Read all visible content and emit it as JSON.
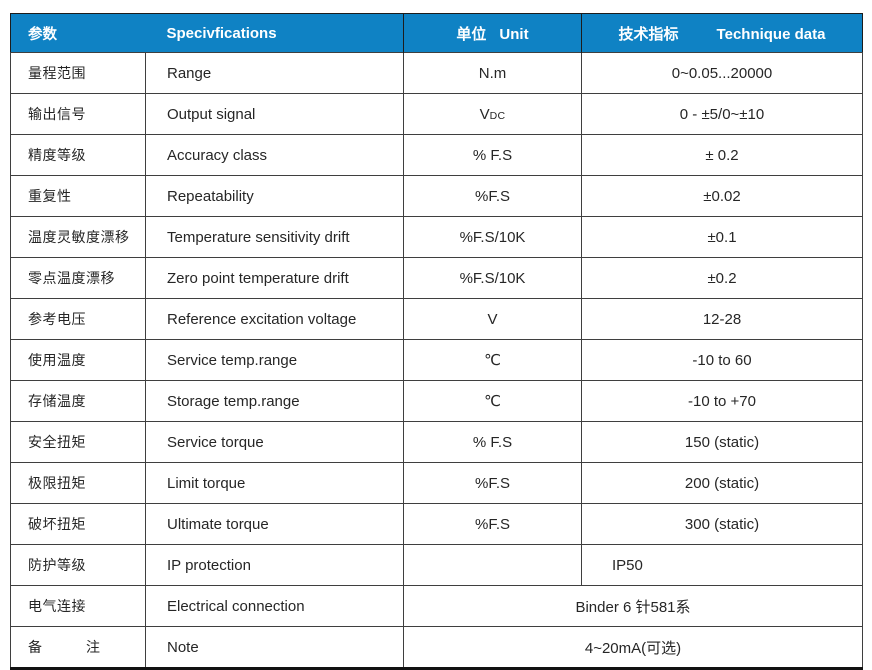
{
  "colors": {
    "accent": "#0f82c4",
    "text": "#262626",
    "header_text": "#ffffff"
  },
  "header": {
    "col1_zh": "参数",
    "col2_en": "Specivfications",
    "col3_zh": "单位",
    "col3_en": "Unit",
    "col4_zh": "技术指标",
    "col4_en": "Technique data"
  },
  "table": {
    "rows": [
      {
        "zh": "量程范围",
        "en": "Range",
        "unit": "N.m",
        "value": "0~0.05...20000"
      },
      {
        "zh": "输出信号",
        "en": "Output signal",
        "unit": "V",
        "unit_sub": "DC",
        "value": "0 - ±5/0~±10"
      },
      {
        "zh": "精度等级",
        "en": "Accuracy class",
        "unit": "% F.S",
        "value": "± 0.2"
      },
      {
        "zh": "重复性",
        "en": "Repeatability",
        "unit": "%F.S",
        "value": "±0.02"
      },
      {
        "zh": "温度灵敏度漂移",
        "en": "Temperature sensitivity drift",
        "unit": "%F.S/10K",
        "value": "±0.1"
      },
      {
        "zh": "零点温度漂移",
        "en": "Zero point temperature drift",
        "unit": "%F.S/10K",
        "value": "±0.2"
      },
      {
        "zh": "参考电压",
        "en": "Reference excitation voltage",
        "unit": "V",
        "value": "12-28"
      },
      {
        "zh": "使用温度",
        "en": "Service temp.range",
        "unit": "℃",
        "value": "-10 to 60"
      },
      {
        "zh": "存储温度",
        "en": "Storage temp.range",
        "unit": "℃",
        "value": "-10 to +70"
      },
      {
        "zh": "安全扭矩",
        "en": "Service torque",
        "unit": "% F.S",
        "value": "150 (static)"
      },
      {
        "zh": "极限扭矩",
        "en": "Limit torque",
        "unit": "%F.S",
        "value": "200 (static)"
      },
      {
        "zh": "破坏扭矩",
        "en": "Ultimate torque",
        "unit": "%F.S",
        "value": "300 (static)"
      },
      {
        "zh": "防护等级",
        "en": "IP protection",
        "unit": "",
        "value": "IP50",
        "value_align": "left"
      },
      {
        "zh": "电气连接",
        "en": "Electrical connection",
        "merged": true,
        "value": "Binder 6 针581系"
      },
      {
        "zh": "备　　　注",
        "en": "Note",
        "merged": true,
        "value": "4~20mA(可选)"
      }
    ]
  }
}
